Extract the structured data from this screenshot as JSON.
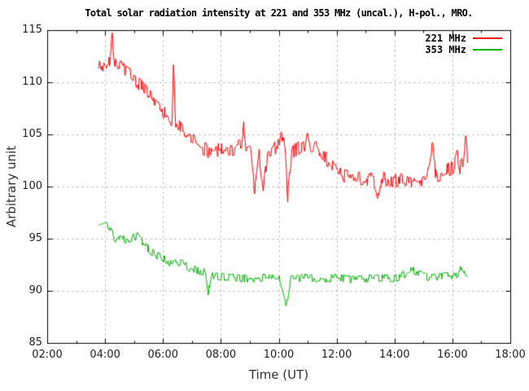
{
  "page": {
    "background": "#ffffff"
  },
  "chart_data": {
    "type": "line",
    "title": "Total solar radiation intensity at 221 and 353 MHz (uncal.), H-pol., MRO.",
    "xlabel": "Time (UT)",
    "ylabel": "Arbitrary unit",
    "xlim_hours": [
      2,
      18
    ],
    "ylim": [
      85,
      115
    ],
    "grid": true,
    "grid_color": "#a8a8a8",
    "frame_color": "#000000",
    "legend_position": "top-right",
    "x_major_ticks": [
      {
        "hour": 2,
        "label": "02:00"
      },
      {
        "hour": 4,
        "label": "04:00"
      },
      {
        "hour": 6,
        "label": "06:00"
      },
      {
        "hour": 8,
        "label": "08:00"
      },
      {
        "hour": 10,
        "label": "10:00"
      },
      {
        "hour": 12,
        "label": "12:00"
      },
      {
        "hour": 14,
        "label": "14:00"
      },
      {
        "hour": 16,
        "label": "16:00"
      },
      {
        "hour": 18,
        "label": "18:00"
      }
    ],
    "x_minor_tick_hours": [
      3,
      5,
      7,
      9,
      11,
      13,
      15,
      17
    ],
    "y_major_ticks": [
      {
        "value": 85,
        "label": "85"
      },
      {
        "value": 90,
        "label": "90"
      },
      {
        "value": 95,
        "label": "95"
      },
      {
        "value": 100,
        "label": "100"
      },
      {
        "value": 105,
        "label": "105"
      },
      {
        "value": 110,
        "label": "110"
      },
      {
        "value": 115,
        "label": "115"
      }
    ],
    "series": [
      {
        "name": "221 MHz",
        "color": "#ff0000",
        "noise_amplitude": 0.75,
        "trend": [
          [
            3.77,
            111.9
          ],
          [
            3.85,
            111.3
          ],
          [
            3.95,
            112.2
          ],
          [
            4.05,
            111.6
          ],
          [
            4.15,
            112.0
          ],
          [
            4.22,
            114.9
          ],
          [
            4.3,
            112.6
          ],
          [
            4.4,
            111.2
          ],
          [
            4.55,
            111.5
          ],
          [
            4.7,
            111.0
          ],
          [
            4.9,
            110.6
          ],
          [
            5.1,
            110.1
          ],
          [
            5.35,
            109.3
          ],
          [
            5.6,
            108.4
          ],
          [
            5.9,
            107.6
          ],
          [
            6.1,
            106.9
          ],
          [
            6.3,
            106.3
          ],
          [
            6.35,
            112.9
          ],
          [
            6.42,
            106.1
          ],
          [
            6.7,
            105.3
          ],
          [
            7.0,
            104.5
          ],
          [
            7.3,
            103.8
          ],
          [
            7.6,
            103.4
          ],
          [
            8.0,
            103.6
          ],
          [
            8.4,
            103.3
          ],
          [
            8.7,
            104.1
          ],
          [
            8.78,
            105.7
          ],
          [
            8.85,
            103.1
          ],
          [
            9.0,
            103.4
          ],
          [
            9.15,
            99.8
          ],
          [
            9.3,
            103.2
          ],
          [
            9.45,
            99.6
          ],
          [
            9.6,
            103.0
          ],
          [
            9.8,
            103.6
          ],
          [
            10.0,
            104.0
          ],
          [
            10.07,
            105.7
          ],
          [
            10.2,
            103.2
          ],
          [
            10.3,
            99.1
          ],
          [
            10.45,
            103.3
          ],
          [
            10.7,
            103.8
          ],
          [
            10.9,
            104.1
          ],
          [
            10.97,
            105.7
          ],
          [
            11.1,
            103.6
          ],
          [
            11.3,
            103.8
          ],
          [
            11.55,
            103.1
          ],
          [
            11.75,
            102.2
          ],
          [
            11.95,
            101.5
          ],
          [
            12.15,
            101.1
          ],
          [
            12.45,
            100.9
          ],
          [
            12.8,
            100.8
          ],
          [
            13.2,
            100.7
          ],
          [
            13.45,
            99.2
          ],
          [
            13.6,
            100.8
          ],
          [
            14.0,
            100.6
          ],
          [
            14.4,
            100.7
          ],
          [
            14.8,
            100.5
          ],
          [
            15.1,
            100.8
          ],
          [
            15.3,
            103.8
          ],
          [
            15.42,
            101.0
          ],
          [
            15.6,
            101.3
          ],
          [
            15.8,
            101.6
          ],
          [
            16.0,
            101.8
          ],
          [
            16.15,
            103.3
          ],
          [
            16.25,
            101.9
          ],
          [
            16.35,
            102.3
          ],
          [
            16.45,
            104.8
          ],
          [
            16.52,
            102.4
          ]
        ]
      },
      {
        "name": "353 MHz",
        "color": "#00b000",
        "noise_amplitude": 0.42,
        "trend": [
          [
            3.77,
            96.3
          ],
          [
            3.9,
            96.5
          ],
          [
            4.05,
            96.6
          ],
          [
            4.2,
            95.7
          ],
          [
            4.35,
            94.9
          ],
          [
            4.5,
            95.3
          ],
          [
            4.7,
            94.9
          ],
          [
            4.9,
            95.1
          ],
          [
            5.1,
            95.3
          ],
          [
            5.3,
            94.6
          ],
          [
            5.5,
            94.0
          ],
          [
            5.75,
            93.4
          ],
          [
            6.0,
            93.2
          ],
          [
            6.3,
            92.6
          ],
          [
            6.6,
            92.8
          ],
          [
            6.9,
            92.2
          ],
          [
            7.2,
            92.0
          ],
          [
            7.45,
            91.8
          ],
          [
            7.55,
            89.9
          ],
          [
            7.7,
            91.5
          ],
          [
            8.0,
            91.4
          ],
          [
            8.5,
            91.3
          ],
          [
            9.0,
            91.2
          ],
          [
            9.5,
            91.3
          ],
          [
            10.0,
            91.2
          ],
          [
            10.25,
            88.7
          ],
          [
            10.4,
            91.2
          ],
          [
            11.0,
            91.3
          ],
          [
            11.5,
            91.2
          ],
          [
            12.0,
            91.3
          ],
          [
            12.5,
            91.1
          ],
          [
            13.0,
            91.2
          ],
          [
            13.5,
            91.3
          ],
          [
            14.0,
            91.2
          ],
          [
            14.4,
            91.7
          ],
          [
            14.6,
            92.0
          ],
          [
            14.8,
            91.8
          ],
          [
            15.0,
            91.4
          ],
          [
            15.4,
            91.3
          ],
          [
            15.8,
            91.5
          ],
          [
            16.1,
            91.4
          ],
          [
            16.3,
            92.2
          ],
          [
            16.45,
            91.4
          ],
          [
            16.52,
            91.5
          ]
        ]
      }
    ]
  }
}
